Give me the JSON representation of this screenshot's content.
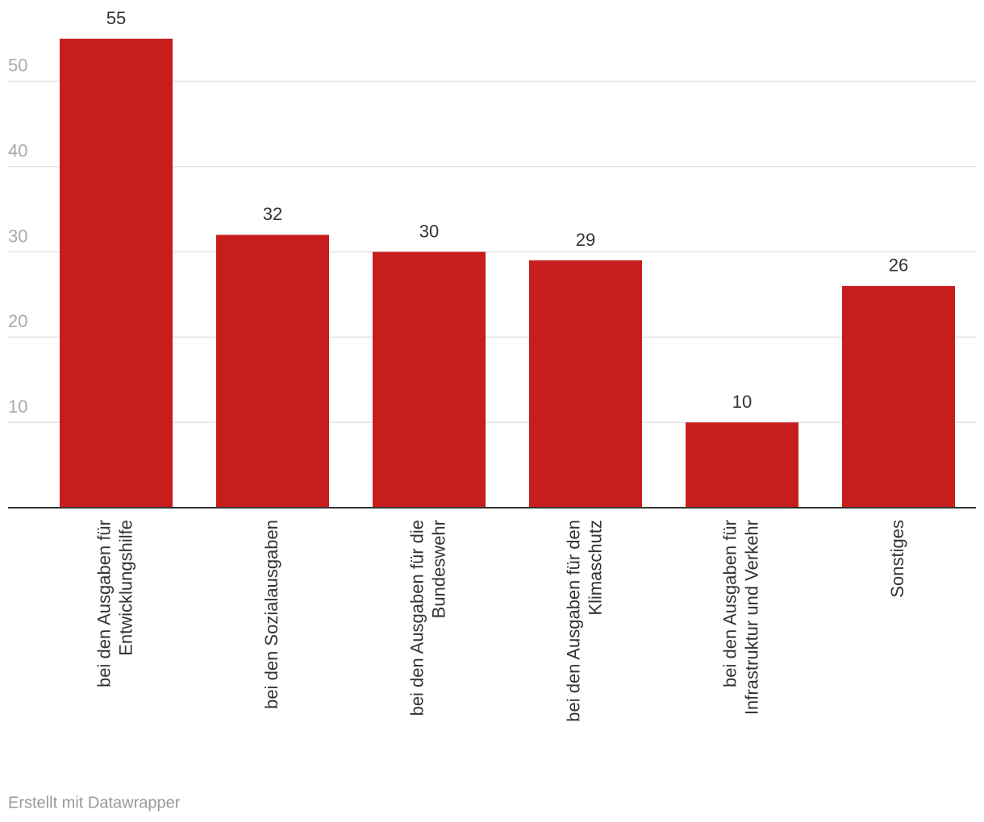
{
  "chart_data": {
    "type": "bar",
    "categories": [
      "bei den Ausgaben für Entwicklungshilfe",
      "bei den Sozialausgaben",
      "bei den Ausgaben für die Bundeswehr",
      "bei den Ausgaben für den Klimaschutz",
      "bei den Ausgaben für Infrastruktur und Verkehr",
      "Sonstiges"
    ],
    "values": [
      55,
      32,
      30,
      29,
      10,
      26
    ],
    "color": "#c71e1d",
    "ylim": [
      0,
      55
    ],
    "yticks": [
      10,
      20,
      30,
      40,
      50
    ],
    "grid": true,
    "footer": "Erstellt mit Datawrapper"
  }
}
